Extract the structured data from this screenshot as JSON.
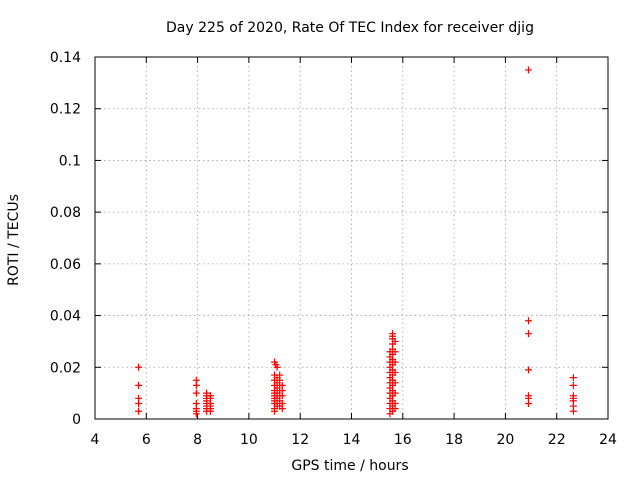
{
  "chart_data": {
    "type": "scatter",
    "title": "Day 225 of 2020, Rate Of TEC Index for receiver djig",
    "xlabel": "GPS time / hours",
    "ylabel": "ROTI / TECUs",
    "xlim": [
      4,
      24
    ],
    "ylim": [
      0,
      0.14
    ],
    "xticks": [
      4,
      6,
      8,
      10,
      12,
      14,
      16,
      18,
      20,
      22,
      24
    ],
    "xtick_labels": [
      "4",
      "6",
      "8",
      "10",
      "12",
      "14",
      "16",
      "18",
      "20",
      "22",
      "24"
    ],
    "yticks": [
      0,
      0.02,
      0.04,
      0.06,
      0.08,
      0.1,
      0.12,
      0.14
    ],
    "ytick_labels": [
      "0",
      "0.02",
      "0.04",
      "0.06",
      "0.08",
      "0.1",
      "0.12",
      "0.14"
    ],
    "grid": true,
    "marker": "+",
    "color": "#ff0000",
    "series": [
      {
        "name": "ROTI",
        "points": [
          [
            5.7,
            0.02
          ],
          [
            5.7,
            0.013
          ],
          [
            5.7,
            0.008
          ],
          [
            5.7,
            0.006
          ],
          [
            5.7,
            0.003
          ],
          [
            7.95,
            0.015
          ],
          [
            7.95,
            0.013
          ],
          [
            7.95,
            0.01
          ],
          [
            7.95,
            0.006
          ],
          [
            7.95,
            0.004
          ],
          [
            7.95,
            0.003
          ],
          [
            7.95,
            0.002
          ],
          [
            8.35,
            0.01
          ],
          [
            8.35,
            0.009
          ],
          [
            8.35,
            0.008
          ],
          [
            8.35,
            0.007
          ],
          [
            8.35,
            0.006
          ],
          [
            8.35,
            0.005
          ],
          [
            8.35,
            0.004
          ],
          [
            8.35,
            0.003
          ],
          [
            8.5,
            0.009
          ],
          [
            8.5,
            0.008
          ],
          [
            8.5,
            0.006
          ],
          [
            8.5,
            0.005
          ],
          [
            8.5,
            0.004
          ],
          [
            8.5,
            0.003
          ],
          [
            11.0,
            0.022
          ],
          [
            11.05,
            0.021
          ],
          [
            11.0,
            0.017
          ],
          [
            11.0,
            0.015
          ],
          [
            11.0,
            0.013
          ],
          [
            11.0,
            0.011
          ],
          [
            11.0,
            0.01
          ],
          [
            11.0,
            0.009
          ],
          [
            11.0,
            0.008
          ],
          [
            11.0,
            0.007
          ],
          [
            11.0,
            0.006
          ],
          [
            11.0,
            0.004
          ],
          [
            11.0,
            0.003
          ],
          [
            11.1,
            0.02
          ],
          [
            11.1,
            0.016
          ],
          [
            11.1,
            0.014
          ],
          [
            11.1,
            0.012
          ],
          [
            11.1,
            0.01
          ],
          [
            11.1,
            0.008
          ],
          [
            11.1,
            0.006
          ],
          [
            11.1,
            0.005
          ],
          [
            11.2,
            0.017
          ],
          [
            11.2,
            0.015
          ],
          [
            11.2,
            0.013
          ],
          [
            11.2,
            0.011
          ],
          [
            11.2,
            0.009
          ],
          [
            11.2,
            0.007
          ],
          [
            11.2,
            0.005
          ],
          [
            11.3,
            0.013
          ],
          [
            11.3,
            0.011
          ],
          [
            11.3,
            0.009
          ],
          [
            11.3,
            0.006
          ],
          [
            11.3,
            0.004
          ],
          [
            15.5,
            0.026
          ],
          [
            15.5,
            0.024
          ],
          [
            15.5,
            0.022
          ],
          [
            15.5,
            0.02
          ],
          [
            15.5,
            0.018
          ],
          [
            15.5,
            0.016
          ],
          [
            15.5,
            0.014
          ],
          [
            15.5,
            0.012
          ],
          [
            15.5,
            0.01
          ],
          [
            15.5,
            0.008
          ],
          [
            15.5,
            0.006
          ],
          [
            15.5,
            0.004
          ],
          [
            15.5,
            0.002
          ],
          [
            15.6,
            0.033
          ],
          [
            15.6,
            0.032
          ],
          [
            15.6,
            0.031
          ],
          [
            15.6,
            0.029
          ],
          [
            15.6,
            0.027
          ],
          [
            15.6,
            0.025
          ],
          [
            15.6,
            0.023
          ],
          [
            15.6,
            0.021
          ],
          [
            15.6,
            0.019
          ],
          [
            15.6,
            0.017
          ],
          [
            15.6,
            0.015
          ],
          [
            15.6,
            0.013
          ],
          [
            15.6,
            0.011
          ],
          [
            15.6,
            0.009
          ],
          [
            15.6,
            0.007
          ],
          [
            15.6,
            0.005
          ],
          [
            15.6,
            0.003
          ],
          [
            15.7,
            0.03
          ],
          [
            15.7,
            0.026
          ],
          [
            15.7,
            0.022
          ],
          [
            15.7,
            0.018
          ],
          [
            15.7,
            0.014
          ],
          [
            15.7,
            0.01
          ],
          [
            15.7,
            0.006
          ],
          [
            15.7,
            0.004
          ],
          [
            20.9,
            0.135
          ],
          [
            20.9,
            0.038
          ],
          [
            20.9,
            0.033
          ],
          [
            20.9,
            0.019
          ],
          [
            20.9,
            0.009
          ],
          [
            20.9,
            0.008
          ],
          [
            20.9,
            0.006
          ],
          [
            22.65,
            0.016
          ],
          [
            22.65,
            0.013
          ],
          [
            22.65,
            0.009
          ],
          [
            22.65,
            0.008
          ],
          [
            22.65,
            0.007
          ],
          [
            22.65,
            0.005
          ],
          [
            22.65,
            0.003
          ]
        ]
      }
    ]
  }
}
